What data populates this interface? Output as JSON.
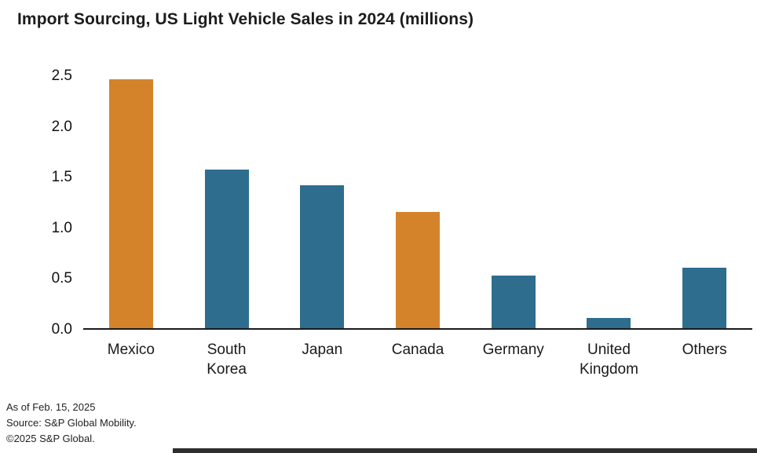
{
  "title": "Import Sourcing, US Light Vehicle Sales in 2024 (millions)",
  "colors": {
    "orange": "#d5832a",
    "teal": "#2e6d8e",
    "axis": "#1a1a1a"
  },
  "chart_data": {
    "type": "bar",
    "title": "Import Sourcing, US Light Vehicle Sales in 2024 (millions)",
    "categories": [
      "Mexico",
      "South Korea",
      "Japan",
      "Canada",
      "Germany",
      "United Kingdom",
      "Others"
    ],
    "tick_labels": [
      "Mexico",
      "South\nKorea",
      "Japan",
      "Canada",
      "Germany",
      "United\nKingdom",
      "Others"
    ],
    "values": [
      2.47,
      1.57,
      1.42,
      1.15,
      0.52,
      0.1,
      0.6
    ],
    "bar_colors": [
      "#d5832a",
      "#2e6d8e",
      "#2e6d8e",
      "#d5832a",
      "#2e6d8e",
      "#2e6d8e",
      "#2e6d8e"
    ],
    "xlabel": "",
    "ylabel": "",
    "ylim": [
      0,
      2.5
    ],
    "yticks": [
      0.0,
      0.5,
      1.0,
      1.5,
      2.0,
      2.5
    ],
    "ytick_labels": [
      "0.0",
      "0.5",
      "1.0",
      "1.5",
      "2.0",
      "2.5"
    ],
    "grid": false,
    "legend_position": "none"
  },
  "footer": {
    "line1": "As of Feb. 15, 2025",
    "line2": "Source: S&P Global Mobility.",
    "line3": "©2025 S&P Global."
  }
}
